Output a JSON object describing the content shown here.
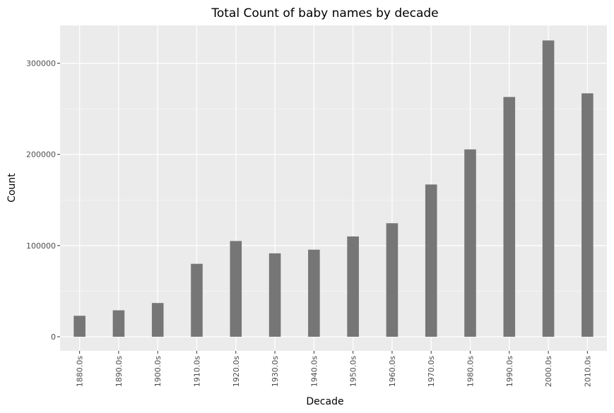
{
  "chart_data": {
    "type": "bar",
    "title": "Total Count of baby names by decade",
    "xlabel": "Decade",
    "ylabel": "Count",
    "categories": [
      "1880.0s",
      "1890.0s",
      "1900.0s",
      "1910.0s",
      "1920.0s",
      "1930.0s",
      "1940.0s",
      "1950.0s",
      "1960.0s",
      "1970.0s",
      "1980.0s",
      "1990.0s",
      "2000.0s",
      "2010.0s"
    ],
    "values": [
      23000,
      29000,
      37000,
      80000,
      105000,
      91500,
      95500,
      110000,
      124500,
      167000,
      205500,
      263000,
      325000,
      267000
    ],
    "ylim": [
      -15500,
      341500
    ],
    "yticks": [
      0,
      100000,
      200000,
      300000
    ],
    "ytick_labels": [
      "0",
      "100000",
      "200000",
      "300000"
    ],
    "grid": true,
    "colors": {
      "panel_background": "#ebebeb",
      "grid_major": "#ffffff",
      "grid_minor": "#f5f5f5",
      "bar_fill": "#767676",
      "tick_color": "#333333"
    }
  }
}
